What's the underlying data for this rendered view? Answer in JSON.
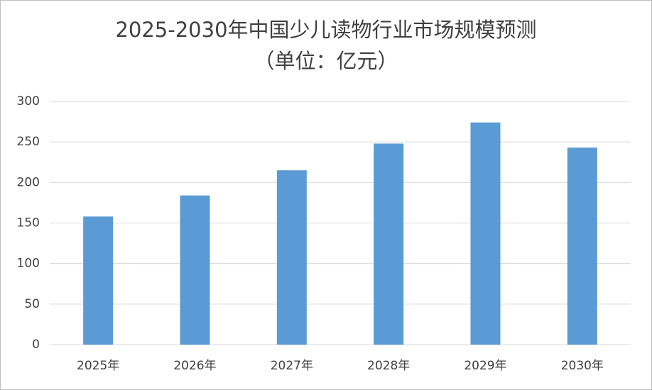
{
  "chart_data": {
    "type": "bar",
    "title": "2025-2030年中国少儿读物行业市场规模预测",
    "subtitle": "（单位：亿元）",
    "categories": [
      "2025年",
      "2026年",
      "2027年",
      "2028年",
      "2029年",
      "2030年"
    ],
    "values": [
      158,
      184,
      215,
      248,
      274,
      243
    ],
    "color": "#5b9bd5",
    "ylim": [
      0,
      300
    ],
    "yticks": [
      0,
      50,
      100,
      150,
      200,
      250,
      300
    ],
    "grid": true
  }
}
